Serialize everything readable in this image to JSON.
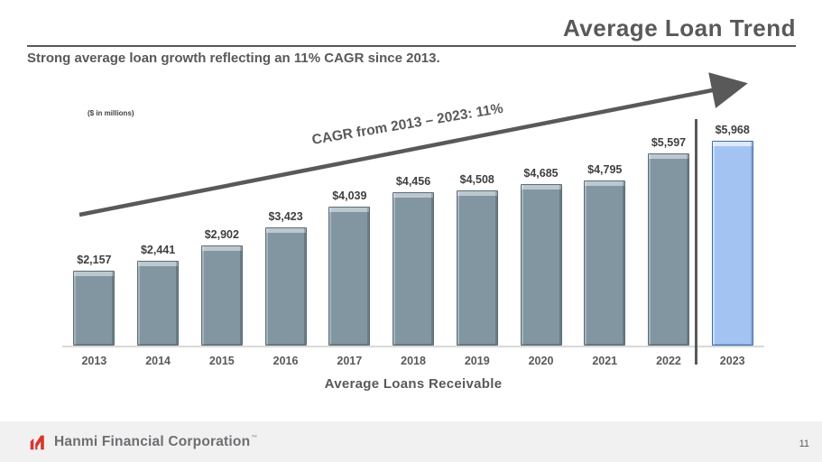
{
  "slide": {
    "title": "Average Loan Trend",
    "subtitle": "Strong average loan growth reflecting an 11% CAGR since 2013.",
    "units_note": "($ in millions)",
    "page_number": "11"
  },
  "chart_data": {
    "type": "bar",
    "title": "Average Loans Receivable",
    "xlabel": "Average Loans Receivable",
    "ylabel": "",
    "units": "$ in millions",
    "categories": [
      "2013",
      "2014",
      "2015",
      "2016",
      "2017",
      "2018",
      "2019",
      "2020",
      "2021",
      "2022",
      "2023"
    ],
    "values": [
      2157,
      2441,
      2902,
      3423,
      4039,
      4456,
      4508,
      4685,
      4795,
      5597,
      5968
    ],
    "labels": [
      "$2,157",
      "$2,441",
      "$2,902",
      "$3,423",
      "$4,039",
      "$4,456",
      "$4,508",
      "$4,685",
      "$4,795",
      "$5,597",
      "$5,968"
    ],
    "ylim": [
      0,
      6000
    ],
    "grid": false,
    "legend": false,
    "highlight_index": 10,
    "annotation": "CAGR from 2013 – 2023: 11%",
    "separator_between": [
      "2022",
      "2023"
    ]
  },
  "footer": {
    "logo_text": "Hanmi Financial Corporation",
    "trademark": "™"
  },
  "colors": {
    "bar_fill": "#8296a2",
    "bar_border": "#5c6d78",
    "highlight_fill": "#a3c4f3",
    "highlight_border": "#3f6ea6",
    "arrow": "#595959",
    "text_gray": "#595959",
    "axis_line": "#d9d9d9",
    "footer_bg": "#f1f1f2",
    "logo_red": "#d8372f"
  }
}
